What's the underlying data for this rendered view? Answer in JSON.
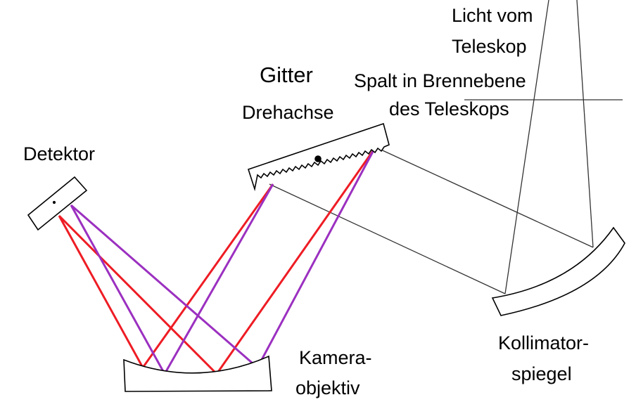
{
  "labels": {
    "detector": "Detektor",
    "grating": "Gitter",
    "axis": "Drehachse",
    "light_line1": "Licht vom",
    "light_line2": "Teleskop",
    "slit_line1": "Spalt in Brennebene",
    "slit_line2": "des Teleskops",
    "camera_line1": "Kamera-",
    "camera_line2": "objektiv",
    "collimator_line1": "Kollimator-",
    "collimator_line2": "spiegel"
  },
  "colors": {
    "outline": "#000000",
    "light_path": "#333333",
    "red_ray": "#ee1c24",
    "violet_ray": "#9b30c0"
  }
}
